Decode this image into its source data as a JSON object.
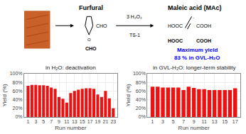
{
  "chart_data": [
    {
      "type": "bar",
      "title": "in H₂O: deactivation",
      "xlabel": "Run number",
      "ylabel": "Yield (%)",
      "x": [
        1,
        2,
        3,
        4,
        5,
        6,
        7,
        8,
        9,
        10,
        11,
        12,
        13,
        14,
        15,
        16,
        17,
        18,
        19,
        20,
        21,
        22,
        23
      ],
      "values": [
        72,
        74,
        74,
        73,
        73,
        72,
        68,
        65,
        46,
        42,
        33,
        55,
        60,
        63,
        65,
        66,
        66,
        65,
        52,
        46,
        60,
        43,
        20
      ],
      "color": "#ee1111",
      "xlim": [
        0,
        24
      ],
      "xticks": [
        1,
        3,
        5,
        7,
        9,
        11,
        13,
        15,
        17,
        19,
        21,
        23
      ],
      "ylim": [
        0,
        100
      ],
      "yticks": [
        {
          "value": 0,
          "label": "0%"
        },
        {
          "value": 20,
          "label": "20%"
        },
        {
          "value": 40,
          "label": "40%"
        },
        {
          "value": 60,
          "label": "60%"
        },
        {
          "value": 80,
          "label": "80%"
        },
        {
          "value": 100,
          "label": "100%"
        }
      ],
      "grid": true,
      "annotations": [
        {
          "text": "Furfural"
        },
        {
          "text": "Maleic acid (MAc)"
        },
        {
          "text": "3 H₂O₂"
        },
        {
          "text": "TS-1"
        },
        {
          "text": "O"
        },
        {
          "text": "CHO"
        },
        {
          "text": "HOOC"
        },
        {
          "text": "COOH"
        },
        {
          "text": "CHO"
        },
        {
          "text": "HOOC"
        },
        {
          "text": "COOH"
        },
        {
          "text": "Maximum yield",
          "color": "#0000ff"
        },
        {
          "text": "83 % in GVL-H₂O",
          "color": "#0000ff"
        }
      ]
    },
    {
      "type": "bar",
      "title": "in GVL-H₂O: longer-term stability",
      "xlabel": "Run number",
      "ylabel": "Yield (%)",
      "x": [
        1,
        2,
        3,
        4,
        5,
        6,
        7,
        8,
        9,
        10,
        11,
        12,
        13,
        14,
        15,
        16,
        17
      ],
      "values": [
        70,
        70,
        68,
        68,
        68,
        68,
        62,
        70,
        67,
        64,
        64,
        62,
        62,
        62,
        62,
        62,
        66
      ],
      "color": "#ee1111",
      "xlim": [
        0,
        18
      ],
      "xticks": [
        1,
        3,
        5,
        7,
        9,
        11,
        13,
        15,
        17
      ],
      "ylim": [
        0,
        100
      ],
      "yticks": [
        {
          "value": 0,
          "label": "0%"
        },
        {
          "value": 20,
          "label": "20%"
        },
        {
          "value": 40,
          "label": "40%"
        },
        {
          "value": 60,
          "label": "60%"
        },
        {
          "value": 80,
          "label": "80%"
        },
        {
          "value": 100,
          "label": "100%"
        }
      ],
      "grid": true
    }
  ]
}
